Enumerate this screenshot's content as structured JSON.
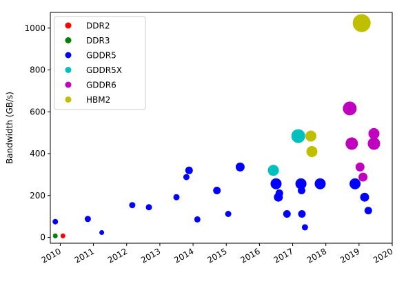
{
  "chart_data": {
    "type": "scatter",
    "title": "",
    "xlabel": "",
    "ylabel": "Bandwidth (GB/s)",
    "xlim": [
      2009.7,
      2020.0
    ],
    "ylim": [
      -28,
      1075
    ],
    "x_ticks": [
      "2010",
      "2011",
      "2012",
      "2013",
      "2014",
      "2015",
      "2016",
      "2017",
      "2018",
      "2019",
      "2020"
    ],
    "y_ticks": [
      0,
      200,
      400,
      600,
      800,
      1000
    ],
    "grid": false,
    "legend_position": "top-left",
    "series": [
      {
        "name": "DDR2",
        "color": "#ff0000",
        "points": [
          {
            "x": 2010.08,
            "y": 7,
            "size": 5
          }
        ]
      },
      {
        "name": "DDR3",
        "color": "#008000",
        "points": [
          {
            "x": 2009.85,
            "y": 7,
            "size": 5
          }
        ]
      },
      {
        "name": "GDDR5",
        "color": "#0000ff",
        "points": [
          {
            "x": 2009.85,
            "y": 75,
            "size": 6
          },
          {
            "x": 2010.83,
            "y": 88,
            "size": 7
          },
          {
            "x": 2011.25,
            "y": 23,
            "size": 5
          },
          {
            "x": 2012.17,
            "y": 154,
            "size": 7
          },
          {
            "x": 2012.67,
            "y": 144,
            "size": 7
          },
          {
            "x": 2013.5,
            "y": 192,
            "size": 7
          },
          {
            "x": 2013.8,
            "y": 288,
            "size": 7
          },
          {
            "x": 2013.88,
            "y": 320,
            "size": 9
          },
          {
            "x": 2014.13,
            "y": 86,
            "size": 7
          },
          {
            "x": 2014.72,
            "y": 224,
            "size": 9
          },
          {
            "x": 2015.06,
            "y": 112,
            "size": 7
          },
          {
            "x": 2015.42,
            "y": 336,
            "size": 11
          },
          {
            "x": 2016.5,
            "y": 256,
            "size": 14
          },
          {
            "x": 2016.57,
            "y": 192,
            "size": 11
          },
          {
            "x": 2016.6,
            "y": 211,
            "size": 9
          },
          {
            "x": 2016.83,
            "y": 112,
            "size": 9
          },
          {
            "x": 2017.25,
            "y": 256,
            "size": 14
          },
          {
            "x": 2017.27,
            "y": 224,
            "size": 9
          },
          {
            "x": 2017.28,
            "y": 112,
            "size": 9
          },
          {
            "x": 2017.37,
            "y": 48,
            "size": 7
          },
          {
            "x": 2017.83,
            "y": 256,
            "size": 14
          },
          {
            "x": 2018.88,
            "y": 256,
            "size": 14
          },
          {
            "x": 2019.17,
            "y": 192,
            "size": 11
          },
          {
            "x": 2019.28,
            "y": 128,
            "size": 9
          }
        ]
      },
      {
        "name": "GDDR5X",
        "color": "#00bfbf",
        "points": [
          {
            "x": 2016.42,
            "y": 320,
            "size": 14
          },
          {
            "x": 2017.17,
            "y": 484,
            "size": 18
          }
        ]
      },
      {
        "name": "GDDR6",
        "color": "#bf00bf",
        "points": [
          {
            "x": 2018.72,
            "y": 616,
            "size": 18
          },
          {
            "x": 2018.78,
            "y": 448,
            "size": 16
          },
          {
            "x": 2019.03,
            "y": 336,
            "size": 11
          },
          {
            "x": 2019.12,
            "y": 288,
            "size": 11
          },
          {
            "x": 2019.45,
            "y": 496,
            "size": 14
          },
          {
            "x": 2019.45,
            "y": 448,
            "size": 16
          }
        ]
      },
      {
        "name": "HBM2",
        "color": "#bfbf00",
        "points": [
          {
            "x": 2017.55,
            "y": 484,
            "size": 14
          },
          {
            "x": 2017.58,
            "y": 410,
            "size": 14
          },
          {
            "x": 2019.08,
            "y": 1024,
            "size": 24
          }
        ]
      }
    ]
  }
}
